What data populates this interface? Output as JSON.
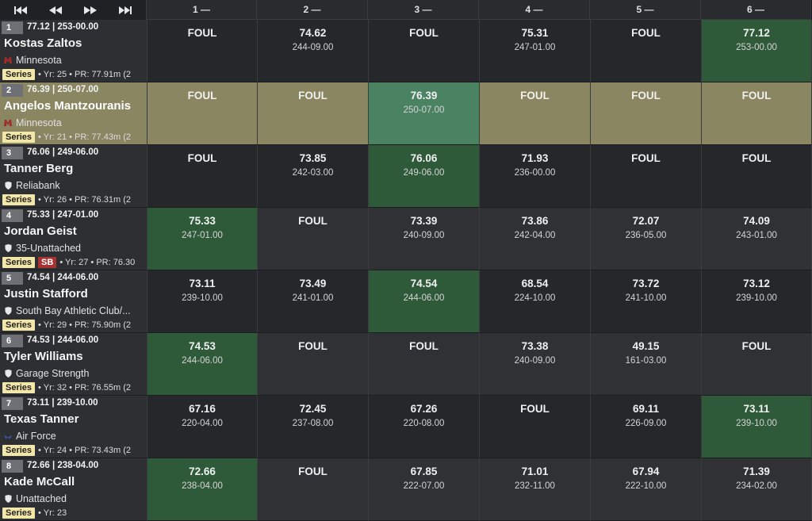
{
  "nav": {
    "first_icon": "skip-first-icon",
    "prev_icon": "rewind-icon",
    "next_icon": "fast-forward-icon",
    "last_icon": "skip-last-icon"
  },
  "columns": [
    "1 —",
    "2 —",
    "3 —",
    "4 —",
    "5 —",
    "6 —"
  ],
  "colors": {
    "best": "#2f5a3a",
    "highlight": "#8a8662",
    "highlight_best": "#4a8262"
  },
  "rows": [
    {
      "place": "1",
      "best": "77.12 | 253-00.00",
      "name": "Kostas Zaltos",
      "team": "Minnesota",
      "team_icon": "minnesota-logo-icon",
      "series": "Series",
      "sb": null,
      "meta": "• Yr: 25 • PR: 77.91m (2",
      "highlight": false,
      "best_index": 5,
      "attempts": [
        {
          "m": "FOUL",
          "i": ""
        },
        {
          "m": "74.62",
          "i": "244-09.00"
        },
        {
          "m": "FOUL",
          "i": ""
        },
        {
          "m": "75.31",
          "i": "247-01.00"
        },
        {
          "m": "FOUL",
          "i": ""
        },
        {
          "m": "77.12",
          "i": "253-00.00"
        }
      ]
    },
    {
      "place": "2",
      "best": "76.39 | 250-07.00",
      "name": "Angelos Mantzouranis",
      "team": "Minnesota",
      "team_icon": "minnesota-logo-icon",
      "series": "Series",
      "sb": null,
      "meta": "• Yr: 21 • PR: 77.43m (2",
      "highlight": true,
      "best_index": 2,
      "attempts": [
        {
          "m": "FOUL",
          "i": ""
        },
        {
          "m": "FOUL",
          "i": ""
        },
        {
          "m": "76.39",
          "i": "250-07.00"
        },
        {
          "m": "FOUL",
          "i": ""
        },
        {
          "m": "FOUL",
          "i": ""
        },
        {
          "m": "FOUL",
          "i": ""
        }
      ]
    },
    {
      "place": "3",
      "best": "76.06 | 249-06.00",
      "name": "Tanner Berg",
      "team": "Reliabank",
      "team_icon": "shield-icon",
      "series": "Series",
      "sb": null,
      "meta": "• Yr: 26 • PR: 76.31m (2",
      "highlight": false,
      "best_index": 2,
      "attempts": [
        {
          "m": "FOUL",
          "i": ""
        },
        {
          "m": "73.85",
          "i": "242-03.00"
        },
        {
          "m": "76.06",
          "i": "249-06.00"
        },
        {
          "m": "71.93",
          "i": "236-00.00"
        },
        {
          "m": "FOUL",
          "i": ""
        },
        {
          "m": "FOUL",
          "i": ""
        }
      ]
    },
    {
      "place": "4",
      "best": "75.33 | 247-01.00",
      "name": "Jordan Geist",
      "team": "35-Unattached",
      "team_icon": "shield-icon",
      "series": "Series",
      "sb": "SB",
      "meta": "• Yr: 27 • PR: 76.30",
      "highlight": false,
      "best_index": 0,
      "attempts": [
        {
          "m": "75.33",
          "i": "247-01.00"
        },
        {
          "m": "FOUL",
          "i": ""
        },
        {
          "m": "73.39",
          "i": "240-09.00"
        },
        {
          "m": "73.86",
          "i": "242-04.00"
        },
        {
          "m": "72.07",
          "i": "236-05.00"
        },
        {
          "m": "74.09",
          "i": "243-01.00"
        }
      ]
    },
    {
      "place": "5",
      "best": "74.54 | 244-06.00",
      "name": "Justin Stafford",
      "team": "South Bay Athletic Club/...",
      "team_icon": "shield-icon",
      "series": "Series",
      "sb": null,
      "meta": "• Yr: 29 • PR: 75.90m (2",
      "highlight": false,
      "best_index": 2,
      "attempts": [
        {
          "m": "73.11",
          "i": "239-10.00"
        },
        {
          "m": "73.49",
          "i": "241-01.00"
        },
        {
          "m": "74.54",
          "i": "244-06.00"
        },
        {
          "m": "68.54",
          "i": "224-10.00"
        },
        {
          "m": "73.72",
          "i": "241-10.00"
        },
        {
          "m": "73.12",
          "i": "239-10.00"
        }
      ]
    },
    {
      "place": "6",
      "best": "74.53 | 244-06.00",
      "name": "Tyler Williams",
      "team": "Garage Strength",
      "team_icon": "shield-icon",
      "series": "Series",
      "sb": null,
      "meta": "• Yr: 32 • PR: 76.55m (2",
      "highlight": false,
      "best_index": 0,
      "attempts": [
        {
          "m": "74.53",
          "i": "244-06.00"
        },
        {
          "m": "FOUL",
          "i": ""
        },
        {
          "m": "FOUL",
          "i": ""
        },
        {
          "m": "73.38",
          "i": "240-09.00"
        },
        {
          "m": "49.15",
          "i": "161-03.00"
        },
        {
          "m": "FOUL",
          "i": ""
        }
      ]
    },
    {
      "place": "7",
      "best": "73.11 | 239-10.00",
      "name": "Texas Tanner",
      "team": "Air Force",
      "team_icon": "air-force-logo-icon",
      "series": "Series",
      "sb": null,
      "meta": "• Yr: 24 • PR: 73.43m (2",
      "highlight": false,
      "best_index": 5,
      "attempts": [
        {
          "m": "67.16",
          "i": "220-04.00"
        },
        {
          "m": "72.45",
          "i": "237-08.00"
        },
        {
          "m": "67.26",
          "i": "220-08.00"
        },
        {
          "m": "FOUL",
          "i": ""
        },
        {
          "m": "69.11",
          "i": "226-09.00"
        },
        {
          "m": "73.11",
          "i": "239-10.00"
        }
      ]
    },
    {
      "place": "8",
      "best": "72.66 | 238-04.00",
      "name": "Kade McCall",
      "team": "Unattached",
      "team_icon": "shield-icon",
      "series": "Series",
      "sb": null,
      "meta": "• Yr: 23",
      "highlight": false,
      "best_index": 0,
      "attempts": [
        {
          "m": "72.66",
          "i": "238-04.00"
        },
        {
          "m": "FOUL",
          "i": ""
        },
        {
          "m": "67.85",
          "i": "222-07.00"
        },
        {
          "m": "71.01",
          "i": "232-11.00"
        },
        {
          "m": "67.94",
          "i": "222-10.00"
        },
        {
          "m": "71.39",
          "i": "234-02.00"
        }
      ]
    }
  ]
}
